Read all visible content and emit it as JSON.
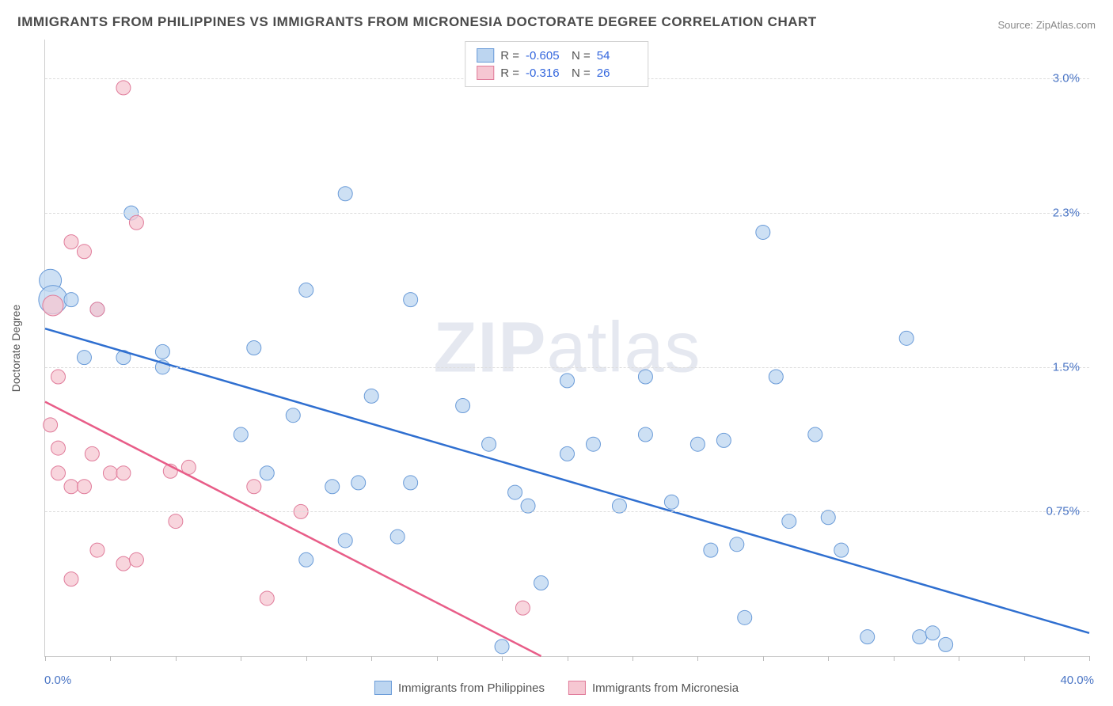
{
  "title": "IMMIGRANTS FROM PHILIPPINES VS IMMIGRANTS FROM MICRONESIA DOCTORATE DEGREE CORRELATION CHART",
  "source": "Source: ZipAtlas.com",
  "watermark": {
    "bold": "ZIP",
    "rest": "atlas"
  },
  "y_axis_label": "Doctorate Degree",
  "chart": {
    "type": "scatter-with-trend",
    "xlim": [
      0.0,
      40.0
    ],
    "ylim": [
      0.0,
      3.2
    ],
    "x_min_label": "0.0%",
    "x_max_label": "40.0%",
    "y_ticks": [
      {
        "value": 0.75,
        "label": "0.75%"
      },
      {
        "value": 1.5,
        "label": "1.5%"
      },
      {
        "value": 2.3,
        "label": "2.3%"
      },
      {
        "value": 3.0,
        "label": "3.0%"
      }
    ],
    "x_tick_positions": [
      0,
      2.5,
      5,
      7.5,
      10,
      12.5,
      15,
      17.5,
      20,
      22.5,
      25,
      27.5,
      30,
      32.5,
      35,
      37.5,
      40
    ],
    "background_color": "#ffffff",
    "grid_color": "#dddddd",
    "series": [
      {
        "id": "philippines",
        "label": "Immigrants from Philippines",
        "marker_fill": "#bcd5f0",
        "marker_stroke": "#6a9bd8",
        "marker_opacity": 0.75,
        "marker_radius": 9,
        "line_color": "#2f6fd0",
        "line_width": 2.5,
        "R": "-0.605",
        "N": "54",
        "trend": {
          "x1": 0.0,
          "y1": 1.7,
          "x2": 40.0,
          "y2": 0.12
        },
        "points": [
          {
            "x": 0.2,
            "y": 1.95,
            "r": 14
          },
          {
            "x": 0.3,
            "y": 1.85,
            "r": 18
          },
          {
            "x": 1.0,
            "y": 1.85
          },
          {
            "x": 2.0,
            "y": 1.8
          },
          {
            "x": 3.3,
            "y": 2.3
          },
          {
            "x": 1.5,
            "y": 1.55
          },
          {
            "x": 3.0,
            "y": 1.55
          },
          {
            "x": 4.5,
            "y": 1.5
          },
          {
            "x": 4.5,
            "y": 1.58
          },
          {
            "x": 11.5,
            "y": 2.4
          },
          {
            "x": 12.5,
            "y": 1.35
          },
          {
            "x": 8.0,
            "y": 1.6
          },
          {
            "x": 9.5,
            "y": 1.25
          },
          {
            "x": 7.5,
            "y": 1.15
          },
          {
            "x": 8.5,
            "y": 0.95
          },
          {
            "x": 10.0,
            "y": 1.9
          },
          {
            "x": 11.0,
            "y": 0.88
          },
          {
            "x": 10.0,
            "y": 0.5
          },
          {
            "x": 12.0,
            "y": 0.9
          },
          {
            "x": 11.5,
            "y": 0.6
          },
          {
            "x": 14.0,
            "y": 1.85
          },
          {
            "x": 14.0,
            "y": 0.9
          },
          {
            "x": 13.5,
            "y": 0.62
          },
          {
            "x": 16.0,
            "y": 1.3
          },
          {
            "x": 17.0,
            "y": 1.1
          },
          {
            "x": 17.5,
            "y": 0.05
          },
          {
            "x": 18.0,
            "y": 0.85
          },
          {
            "x": 18.5,
            "y": 0.78
          },
          {
            "x": 19.0,
            "y": 0.38
          },
          {
            "x": 20.0,
            "y": 1.05
          },
          {
            "x": 20.0,
            "y": 1.43
          },
          {
            "x": 21.0,
            "y": 1.1
          },
          {
            "x": 22.0,
            "y": 0.78
          },
          {
            "x": 23.0,
            "y": 1.15
          },
          {
            "x": 23.0,
            "y": 1.45
          },
          {
            "x": 24.0,
            "y": 0.8
          },
          {
            "x": 25.0,
            "y": 1.1
          },
          {
            "x": 25.5,
            "y": 0.55
          },
          {
            "x": 26.0,
            "y": 1.12
          },
          {
            "x": 26.5,
            "y": 0.58
          },
          {
            "x": 26.8,
            "y": 0.2
          },
          {
            "x": 27.5,
            "y": 2.2
          },
          {
            "x": 28.0,
            "y": 1.45
          },
          {
            "x": 28.5,
            "y": 0.7
          },
          {
            "x": 29.5,
            "y": 1.15
          },
          {
            "x": 30.0,
            "y": 0.72
          },
          {
            "x": 30.5,
            "y": 0.55
          },
          {
            "x": 31.5,
            "y": 0.1
          },
          {
            "x": 33.0,
            "y": 1.65
          },
          {
            "x": 33.5,
            "y": 0.1
          },
          {
            "x": 34.0,
            "y": 0.12
          },
          {
            "x": 34.5,
            "y": 0.06
          }
        ]
      },
      {
        "id": "micronesia",
        "label": "Immigrants from Micronesia",
        "marker_fill": "#f6c7d2",
        "marker_stroke": "#e07b9a",
        "marker_opacity": 0.75,
        "marker_radius": 9,
        "line_color": "#e85d88",
        "line_width": 2.5,
        "R": "-0.316",
        "N": "26",
        "trend": {
          "x1": 0.0,
          "y1": 1.32,
          "x2": 19.0,
          "y2": 0.0
        },
        "points": [
          {
            "x": 0.3,
            "y": 1.82,
            "r": 13
          },
          {
            "x": 1.0,
            "y": 2.15
          },
          {
            "x": 1.5,
            "y": 2.1
          },
          {
            "x": 2.0,
            "y": 1.8
          },
          {
            "x": 3.0,
            "y": 2.95
          },
          {
            "x": 3.5,
            "y": 2.25
          },
          {
            "x": 0.5,
            "y": 1.45
          },
          {
            "x": 0.2,
            "y": 1.2
          },
          {
            "x": 0.5,
            "y": 1.08
          },
          {
            "x": 0.5,
            "y": 0.95
          },
          {
            "x": 1.0,
            "y": 0.88
          },
          {
            "x": 1.8,
            "y": 1.05
          },
          {
            "x": 1.5,
            "y": 0.88
          },
          {
            "x": 2.0,
            "y": 0.55
          },
          {
            "x": 1.0,
            "y": 0.4
          },
          {
            "x": 2.5,
            "y": 0.95
          },
          {
            "x": 3.0,
            "y": 0.95
          },
          {
            "x": 3.0,
            "y": 0.48
          },
          {
            "x": 3.5,
            "y": 0.5
          },
          {
            "x": 4.8,
            "y": 0.96
          },
          {
            "x": 5.5,
            "y": 0.98
          },
          {
            "x": 5.0,
            "y": 0.7
          },
          {
            "x": 8.0,
            "y": 0.88
          },
          {
            "x": 8.5,
            "y": 0.3
          },
          {
            "x": 9.8,
            "y": 0.75
          },
          {
            "x": 18.3,
            "y": 0.25
          }
        ]
      }
    ]
  },
  "stats_labels": {
    "R": "R =",
    "N": "N ="
  },
  "colors": {
    "title": "#4a4a4a",
    "source": "#888888",
    "tick_label": "#4a75c5",
    "axis_label": "#555555"
  }
}
